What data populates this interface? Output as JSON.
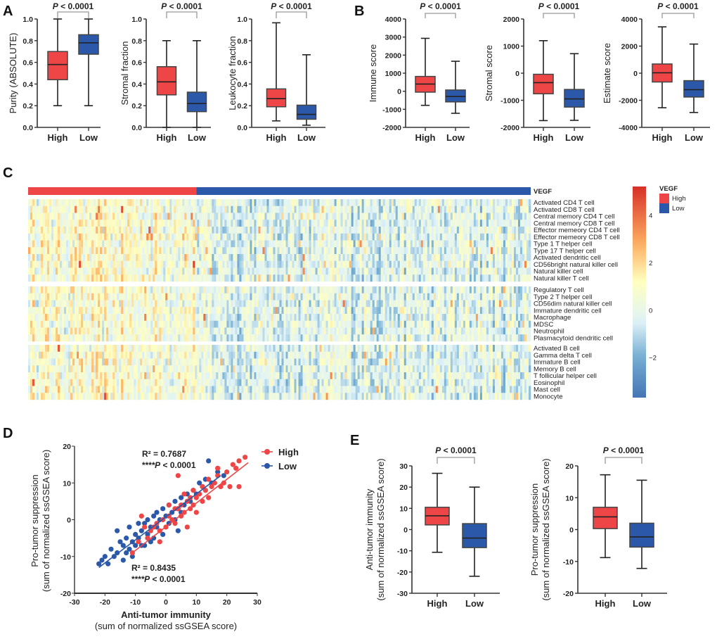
{
  "panel_labels": [
    "A",
    "B",
    "C",
    "D",
    "E"
  ],
  "colors": {
    "high": "#ee4646",
    "low": "#2b58a8",
    "bracket": "#999999",
    "axis": "#333333"
  },
  "chart_data": [
    {
      "id": "A1",
      "type": "box",
      "panel": "A",
      "ylabel": "Purity (ABSOLUTE)",
      "ylim": [
        0,
        1
      ],
      "yticks": [
        0,
        0.2,
        0.4,
        0.6,
        0.8,
        1.0
      ],
      "tick_decimals": 1,
      "categories": [
        "High",
        "Low"
      ],
      "p_label": "P < 0.0001",
      "boxes": [
        {
          "min": 0.2,
          "q1": 0.44,
          "median": 0.58,
          "q3": 0.7,
          "max": 1.0
        },
        {
          "min": 0.2,
          "q1": 0.675,
          "median": 0.78,
          "q3": 0.855,
          "max": 1.0
        }
      ]
    },
    {
      "id": "A2",
      "type": "box",
      "panel": "A",
      "ylabel": "Stromal fraction",
      "ylim": [
        0,
        1
      ],
      "yticks": [
        0,
        0.2,
        0.4,
        0.6,
        0.8,
        1.0
      ],
      "tick_decimals": 1,
      "categories": [
        "High",
        "Low"
      ],
      "p_label": "P < 0.0001",
      "boxes": [
        {
          "min": 0,
          "q1": 0.3,
          "median": 0.42,
          "q3": 0.56,
          "max": 0.8
        },
        {
          "min": 0,
          "q1": 0.145,
          "median": 0.22,
          "q3": 0.325,
          "max": 0.8
        }
      ]
    },
    {
      "id": "A3",
      "type": "box",
      "panel": "A",
      "ylabel": "Leukocyte fraction",
      "ylim": [
        0,
        1
      ],
      "yticks": [
        0,
        0.2,
        0.4,
        0.6,
        0.8,
        1.0
      ],
      "tick_decimals": 1,
      "categories": [
        "High",
        "Low"
      ],
      "p_label": "P < 0.0001",
      "boxes": [
        {
          "min": 0.06,
          "q1": 0.19,
          "median": 0.265,
          "q3": 0.355,
          "max": 0.965
        },
        {
          "min": 0.02,
          "q1": 0.075,
          "median": 0.12,
          "q3": 0.205,
          "max": 0.67
        }
      ]
    },
    {
      "id": "B1",
      "type": "box",
      "panel": "B",
      "ylabel": "Immune score",
      "ylim": [
        -2000,
        4000
      ],
      "yticks": [
        -2000,
        -1000,
        0,
        1000,
        2000,
        3000,
        4000
      ],
      "tick_decimals": 0,
      "categories": [
        "High",
        "Low"
      ],
      "p_label": "P < 0.0001",
      "boxes": [
        {
          "min": -780,
          "q1": -50,
          "median": 400,
          "q3": 820,
          "max": 2930
        },
        {
          "min": -1220,
          "q1": -590,
          "median": -290,
          "q3": 70,
          "max": 1660
        }
      ]
    },
    {
      "id": "B2",
      "type": "box",
      "panel": "B",
      "ylabel": "Stromal score",
      "ylim": [
        -2000,
        2000
      ],
      "yticks": [
        -2000,
        -1000,
        0,
        1000,
        2000
      ],
      "tick_decimals": 0,
      "categories": [
        "High",
        "Low"
      ],
      "p_label": "P < 0.0001",
      "boxes": [
        {
          "min": -1750,
          "q1": -760,
          "median": -350,
          "q3": -40,
          "max": 1200
        },
        {
          "min": -1740,
          "q1": -1250,
          "median": -950,
          "q3": -600,
          "max": 720
        }
      ]
    },
    {
      "id": "B3",
      "type": "box",
      "panel": "B",
      "ylabel": "Estimate score",
      "ylim": [
        -4000,
        4000
      ],
      "yticks": [
        -4000,
        -2000,
        0,
        2000,
        4000
      ],
      "tick_decimals": 0,
      "categories": [
        "High",
        "Low"
      ],
      "p_label": "P < 0.0001",
      "boxes": [
        {
          "min": -2550,
          "q1": -650,
          "median": 30,
          "q3": 680,
          "max": 3420
        },
        {
          "min": -2900,
          "q1": -1760,
          "median": -1220,
          "q3": -550,
          "max": 2150
        }
      ]
    },
    {
      "id": "C",
      "type": "heatmap",
      "panel": "C",
      "annotation_label": "VEGF",
      "row_groups": [
        [
          "Activated CD4 T cell",
          "Activated CD8 T cell",
          "Central memory CD4 T cell",
          "Central memory CD8 T cell",
          "Effector memeory CD4 T cell",
          "Effector memeory CD8 T cell",
          "Type 1 T helper cell",
          "Type 17 T helper cell",
          "Activated dendritic cell",
          "CD56bright natural killer cell",
          "Natural killer cell",
          "Natural killer T cell"
        ],
        [
          "Regulatory T cell",
          "Type 2 T helper cell",
          "CD56dim natural killer cell",
          "Immature dendritic cell",
          "Macrophage",
          "MDSC",
          "Neutrophil",
          "Plasmacytoid dendritic cell"
        ],
        [
          "Activated B cell",
          "Gamma delta T cell",
          "Immature  B cell",
          "Memory B cell",
          "T follicular helper cell",
          "Eosinophil",
          "Mast cell",
          "Monocyte"
        ]
      ],
      "group_fraction_high": 0.335,
      "colorbar": {
        "range": [
          -3.7,
          5.2
        ],
        "ticks": [
          4,
          2,
          0,
          -2
        ],
        "tick_labels": [
          "4",
          "2",
          "0",
          "−2"
        ]
      },
      "legend": {
        "title": "VEGF",
        "entries": [
          "High",
          "Low"
        ]
      }
    },
    {
      "id": "D",
      "type": "scatter",
      "panel": "D",
      "xlabel": [
        "Anti-tumor immunity",
        "(sum of normalized ssGSEA score)"
      ],
      "ylabel": [
        "Pro-tumor suppression",
        "(sum of normalized ssGSEA score)"
      ],
      "xlim": [
        -30,
        30
      ],
      "ylim": [
        -20,
        20
      ],
      "xticks": [
        -30,
        -20,
        -10,
        0,
        10,
        20,
        30
      ],
      "yticks": [
        -20,
        -10,
        0,
        10,
        20
      ],
      "legend": [
        "High",
        "Low"
      ],
      "legend_position": "top-right",
      "series": [
        {
          "name": "High",
          "r2_label": "R² = 0.7687",
          "p_label": "****P < 0.0001",
          "fit": [
            [
              -11,
              -9
            ],
            [
              27,
              15.5
            ]
          ],
          "points": [
            [
              -11,
              -9
            ],
            [
              -8,
              1
            ],
            [
              -7,
              -2
            ],
            [
              -6,
              -5
            ],
            [
              -5,
              -3
            ],
            [
              -4,
              -2
            ],
            [
              -3,
              -1
            ],
            [
              -2,
              -3
            ],
            [
              -1,
              0
            ],
            [
              0,
              -2
            ],
            [
              1,
              1
            ],
            [
              2,
              0
            ],
            [
              3,
              -1
            ],
            [
              4,
              3
            ],
            [
              5,
              1
            ],
            [
              5,
              4
            ],
            [
              6,
              2
            ],
            [
              6,
              7
            ],
            [
              7,
              5
            ],
            [
              8,
              3
            ],
            [
              8,
              6
            ],
            [
              9,
              4
            ],
            [
              9,
              8
            ],
            [
              10,
              6
            ],
            [
              10,
              2
            ],
            [
              11,
              7
            ],
            [
              12,
              5
            ],
            [
              12,
              9
            ],
            [
              13,
              8
            ],
            [
              14,
              11
            ],
            [
              14,
              6
            ],
            [
              15,
              9
            ],
            [
              16,
              10
            ],
            [
              17,
              12
            ],
            [
              17,
              14
            ],
            [
              18,
              9
            ],
            [
              19,
              10
            ],
            [
              20,
              13
            ],
            [
              21,
              9
            ],
            [
              22,
              15
            ],
            [
              23,
              14
            ],
            [
              24,
              16
            ],
            [
              24,
              9
            ],
            [
              26,
              17
            ],
            [
              4,
              12
            ],
            [
              7,
              -2
            ],
            [
              -2,
              -6
            ],
            [
              3,
              3
            ],
            [
              1,
              4
            ],
            [
              -9,
              -6
            ]
          ]
        },
        {
          "name": "Low",
          "r2_label": "R² = 0.8435",
          "p_label": "****P < 0.0001",
          "fit": [
            [
              -22,
              -13
            ],
            [
              18,
              12
            ]
          ],
          "points": [
            [
              -22,
              -12
            ],
            [
              -21,
              -11
            ],
            [
              -20,
              -10
            ],
            [
              -19,
              -12
            ],
            [
              -18,
              -8
            ],
            [
              -17,
              -10
            ],
            [
              -16,
              -9
            ],
            [
              -16,
              -3
            ],
            [
              -15,
              -6
            ],
            [
              -14,
              -11
            ],
            [
              -14,
              -7
            ],
            [
              -13,
              -5
            ],
            [
              -13,
              -9
            ],
            [
              -12,
              -8
            ],
            [
              -12,
              -2
            ],
            [
              -11,
              -6
            ],
            [
              -11,
              -10
            ],
            [
              -10,
              -4
            ],
            [
              -10,
              -7
            ],
            [
              -9,
              -1
            ],
            [
              -9,
              -5
            ],
            [
              -8,
              -3
            ],
            [
              -8,
              -7
            ],
            [
              -7,
              -1
            ],
            [
              -6,
              -4
            ],
            [
              -6,
              0
            ],
            [
              -5,
              -2
            ],
            [
              -5,
              -6
            ],
            [
              -4,
              1
            ],
            [
              -3,
              -2
            ],
            [
              -3,
              2
            ],
            [
              -2,
              0
            ],
            [
              -1,
              -4
            ],
            [
              -1,
              3
            ],
            [
              0,
              1
            ],
            [
              1,
              -1
            ],
            [
              1,
              4
            ],
            [
              2,
              2
            ],
            [
              3,
              5
            ],
            [
              3,
              0
            ],
            [
              4,
              3
            ],
            [
              5,
              6
            ],
            [
              5,
              2
            ],
            [
              6,
              4
            ],
            [
              7,
              7
            ],
            [
              8,
              5
            ],
            [
              9,
              8
            ],
            [
              10,
              7
            ],
            [
              11,
              10
            ],
            [
              12,
              9
            ],
            [
              13,
              11
            ],
            [
              14,
              16
            ],
            [
              15,
              10
            ],
            [
              17,
              13
            ],
            [
              19,
              12
            ],
            [
              4,
              -3
            ],
            [
              -7,
              -7
            ],
            [
              -4,
              -5
            ]
          ]
        }
      ]
    },
    {
      "id": "E1",
      "type": "box",
      "panel": "E",
      "ylabel": [
        "Anti-tumor immunity",
        "(sum of normalized ssGSEA score)"
      ],
      "ylim": [
        -30,
        30
      ],
      "yticks": [
        -30,
        -20,
        -10,
        0,
        10,
        20,
        30
      ],
      "tick_decimals": 0,
      "categories": [
        "High",
        "Low"
      ],
      "p_label": "P < 0.0001",
      "boxes": [
        {
          "min": -10.7,
          "q1": 2.2,
          "median": 6.5,
          "q3": 10.5,
          "max": 26.5
        },
        {
          "min": -22,
          "q1": -8.5,
          "median": -4,
          "q3": 2.8,
          "max": 20
        }
      ]
    },
    {
      "id": "E2",
      "type": "box",
      "panel": "E",
      "ylabel": [
        "Pro-tumor suppression",
        "(sum of normalized ssGSEA score)"
      ],
      "ylim": [
        -20,
        20
      ],
      "yticks": [
        -20,
        -10,
        0,
        10,
        20
      ],
      "tick_decimals": 0,
      "categories": [
        "High",
        "Low"
      ],
      "p_label": "P < 0.0001",
      "boxes": [
        {
          "min": -8.8,
          "q1": 0.3,
          "median": 4,
          "q3": 7,
          "max": 17.2
        },
        {
          "min": -12.2,
          "q1": -5.5,
          "median": -2.3,
          "q3": 2,
          "max": 15.5
        }
      ]
    }
  ]
}
